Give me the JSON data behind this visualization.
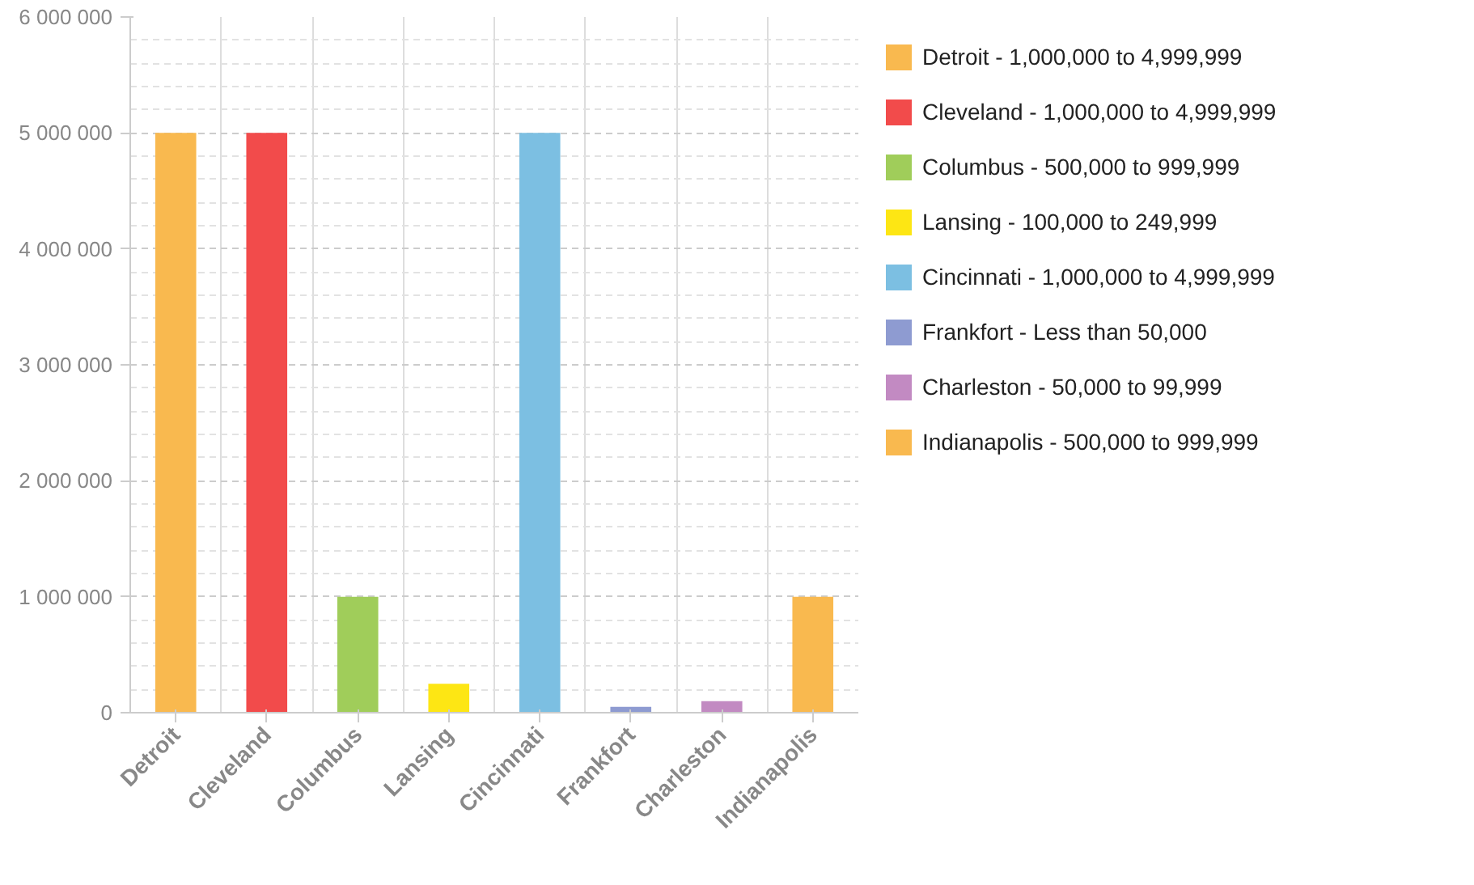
{
  "chart_data": {
    "type": "bar",
    "categories": [
      "Detroit",
      "Cleveland",
      "Columbus",
      "Lansing",
      "Cincinnati",
      "Frankfort",
      "Charleston",
      "Indianapolis"
    ],
    "series": [
      {
        "name": "Detroit - 1,000,000 to 4,999,999",
        "color": "#f9b94f",
        "values": [
          5000000,
          null,
          null,
          null,
          null,
          null,
          null,
          null
        ]
      },
      {
        "name": "Cleveland - 1,000,000 to 4,999,999",
        "color": "#f24b4b",
        "values": [
          null,
          5000000,
          null,
          null,
          null,
          null,
          null,
          null
        ]
      },
      {
        "name": "Columbus - 500,000 to 999,999",
        "color": "#a0cd5a",
        "values": [
          null,
          null,
          1000000,
          null,
          null,
          null,
          null,
          null
        ]
      },
      {
        "name": "Lansing - 100,000 to 249,999",
        "color": "#fde614",
        "values": [
          null,
          null,
          null,
          250000,
          null,
          null,
          null,
          null
        ]
      },
      {
        "name": "Cincinnati - 1,000,000 to 4,999,999",
        "color": "#7cbfe2",
        "values": [
          null,
          null,
          null,
          null,
          5000000,
          null,
          null,
          null
        ]
      },
      {
        "name": "Frankfort - Less than 50,000",
        "color": "#8e9bd1",
        "values": [
          null,
          null,
          null,
          null,
          null,
          50000,
          null,
          null
        ]
      },
      {
        "name": "Charleston - 50,000 to 99,999",
        "color": "#c28ac2",
        "values": [
          null,
          null,
          null,
          null,
          null,
          null,
          100000,
          null
        ]
      },
      {
        "name": "Indianapolis - 500,000 to 999,999",
        "color": "#f9b94f",
        "values": [
          null,
          null,
          null,
          null,
          null,
          null,
          null,
          1000000
        ]
      }
    ],
    "ylim": [
      0,
      6000000
    ],
    "yticks": [
      {
        "value": 0,
        "label": "0"
      },
      {
        "value": 1000000,
        "label": "1 000 000"
      },
      {
        "value": 2000000,
        "label": "2 000 000"
      },
      {
        "value": 3000000,
        "label": "3 000 000"
      },
      {
        "value": 4000000,
        "label": "4 000 000"
      },
      {
        "value": 5000000,
        "label": "5 000 000"
      },
      {
        "value": 6000000,
        "label": "6 000 000"
      }
    ],
    "grid": true,
    "legend": "right"
  }
}
